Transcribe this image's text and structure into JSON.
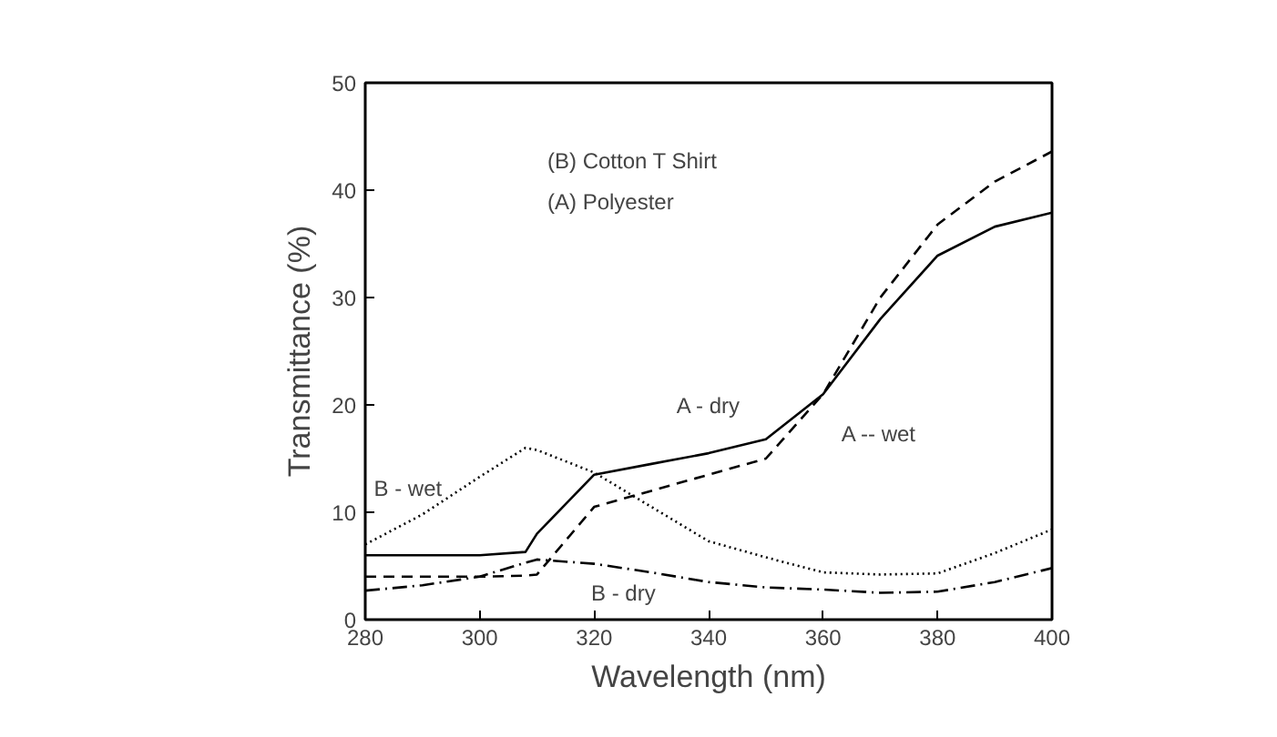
{
  "chart_data": {
    "type": "line",
    "xlabel": "Wavelength (nm)",
    "ylabel": "Transmittance (%)",
    "x": [
      280,
      290,
      300,
      308,
      310,
      320,
      330,
      340,
      350,
      360,
      370,
      380,
      390,
      400
    ],
    "series": [
      {
        "name": "A - dry",
        "color": "#000000",
        "line_style": "solid",
        "values": [
          6,
          6,
          6,
          6.3,
          8,
          13.5,
          14.5,
          15.5,
          16.8,
          21,
          28,
          33.9,
          36.6,
          37.9
        ]
      },
      {
        "name": "A -- wet",
        "color": "#000000",
        "line_style": "dashed",
        "values": [
          4,
          4,
          4,
          4.1,
          4.2,
          10.5,
          12,
          13.5,
          15,
          21,
          30,
          36.8,
          40.8,
          43.6
        ]
      },
      {
        "name": "B - wet",
        "color": "#000000",
        "line_style": "dotted",
        "values": [
          7,
          9.8,
          13.3,
          16,
          15.8,
          13.7,
          10.5,
          7.3,
          5.8,
          4.4,
          4.2,
          4.3,
          6.2,
          8.4
        ]
      },
      {
        "name": "B - dry",
        "color": "#000000",
        "line_style": "dashdot",
        "values": [
          2.7,
          3.2,
          4,
          5.3,
          5.6,
          5.2,
          4.4,
          3.5,
          3,
          2.8,
          2.5,
          2.6,
          3.5,
          4.8
        ]
      }
    ],
    "xlim": [
      280,
      400
    ],
    "ylim": [
      0,
      50
    ],
    "xticks": [
      280,
      300,
      320,
      340,
      360,
      380,
      400
    ],
    "yticks": [
      0,
      10,
      20,
      30,
      40,
      50
    ],
    "grid": false,
    "annotations": [
      "(B)   Cotton T Shirt",
      "(A)      Polyester"
    ]
  }
}
